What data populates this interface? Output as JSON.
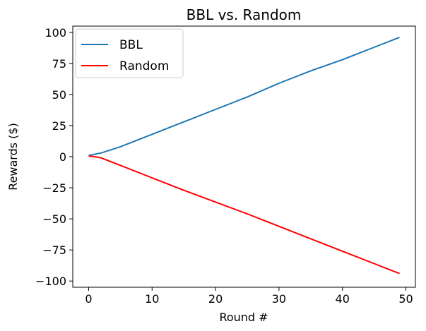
{
  "chart_data": {
    "type": "line",
    "title": "BBL vs. Random",
    "xlabel": "Round #",
    "ylabel": "Rewards ($)",
    "xlim": [
      -2.5,
      51.5
    ],
    "ylim": [
      -105,
      105
    ],
    "xticks": [
      0,
      10,
      20,
      30,
      40,
      50
    ],
    "yticks": [
      100,
      75,
      50,
      25,
      0,
      -25,
      -50,
      -75,
      -100
    ],
    "grid": false,
    "legend": "top-left",
    "series": [
      {
        "name": "BBL",
        "color": "#1f77b4",
        "points": [
          [
            0,
            1
          ],
          [
            2,
            3
          ],
          [
            5,
            8
          ],
          [
            10,
            18
          ],
          [
            15,
            28
          ],
          [
            20,
            38
          ],
          [
            22,
            42
          ],
          [
            25,
            48
          ],
          [
            30,
            59
          ],
          [
            35,
            69
          ],
          [
            40,
            78
          ],
          [
            45,
            88
          ],
          [
            49,
            96
          ]
        ]
      },
      {
        "name": "Random",
        "color": "#ff0000",
        "points": [
          [
            0,
            0.5
          ],
          [
            1,
            0
          ],
          [
            2,
            -1
          ],
          [
            3,
            -3
          ],
          [
            5,
            -7
          ],
          [
            10,
            -17
          ],
          [
            15,
            -27
          ],
          [
            20,
            -36.5
          ],
          [
            25,
            -46
          ],
          [
            30,
            -56
          ],
          [
            35,
            -66
          ],
          [
            40,
            -76
          ],
          [
            45,
            -86
          ],
          [
            49,
            -94
          ]
        ]
      }
    ]
  }
}
